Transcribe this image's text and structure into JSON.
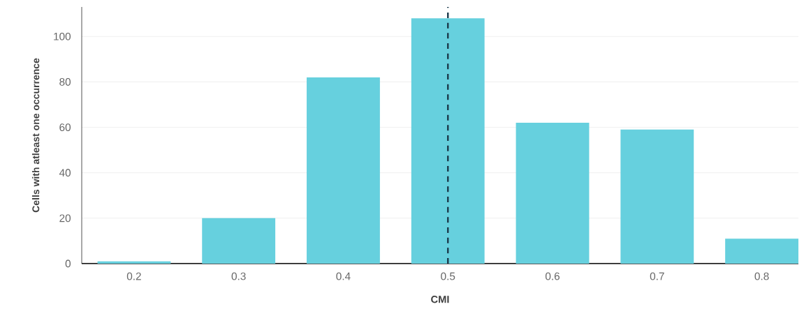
{
  "chart_data": {
    "type": "bar",
    "xlabel": "CMI",
    "ylabel": "Cells with atleast one occurrence",
    "x": [
      0.2,
      0.3,
      0.4,
      0.5,
      0.6,
      0.7,
      0.8
    ],
    "values": [
      1,
      20,
      82,
      108,
      62,
      59,
      11
    ],
    "color": "#66d0de",
    "xlim": [
      0.15,
      0.835
    ],
    "xticks": [
      0.2,
      0.3,
      0.4,
      0.5,
      0.6,
      0.7,
      0.8
    ],
    "ylim": [
      0,
      113
    ],
    "yticks": [
      0,
      20,
      40,
      60,
      80,
      100
    ],
    "grid": "y",
    "ref_lines": [
      {
        "axis": "x",
        "value": 0.5,
        "color": "#1b3a4b",
        "line_style": "dashed"
      }
    ]
  }
}
